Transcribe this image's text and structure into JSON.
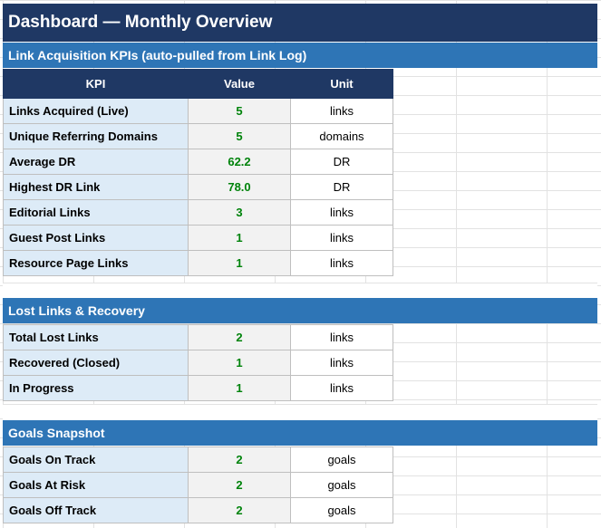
{
  "dashboard": {
    "title": "Dashboard — Monthly Overview",
    "kpi_section": {
      "title": "Link Acquisition KPIs (auto-pulled from Link Log)",
      "headers": [
        "KPI",
        "Value",
        "Unit"
      ],
      "rows": [
        {
          "kpi": "Links Acquired (Live)",
          "value": "5",
          "unit": "links"
        },
        {
          "kpi": "Unique Referring Domains",
          "value": "5",
          "unit": "domains"
        },
        {
          "kpi": "Average DR",
          "value": "62.2",
          "unit": "DR"
        },
        {
          "kpi": "Highest DR Link",
          "value": "78.0",
          "unit": "DR"
        },
        {
          "kpi": "Editorial Links",
          "value": "3",
          "unit": "links"
        },
        {
          "kpi": "Guest Post Links",
          "value": "1",
          "unit": "links"
        },
        {
          "kpi": "Resource Page Links",
          "value": "1",
          "unit": "links"
        }
      ]
    },
    "lost_section": {
      "title": "Lost Links & Recovery",
      "rows": [
        {
          "kpi": "Total Lost Links",
          "value": "2",
          "unit": "links"
        },
        {
          "kpi": "Recovered (Closed)",
          "value": "1",
          "unit": "links"
        },
        {
          "kpi": "In Progress",
          "value": "1",
          "unit": "links"
        }
      ]
    },
    "goals_section": {
      "title": "Goals Snapshot",
      "rows": [
        {
          "kpi": "Goals On Track",
          "value": "2",
          "unit": "goals"
        },
        {
          "kpi": "Goals At Risk",
          "value": "2",
          "unit": "goals"
        },
        {
          "kpi": "Goals Off Track",
          "value": "2",
          "unit": "goals"
        }
      ]
    },
    "colors": {
      "title_bg": "#1f3864",
      "section_bg": "#2e75b6",
      "label_bg": "#ddebf7",
      "value_text": "#00830b"
    }
  }
}
